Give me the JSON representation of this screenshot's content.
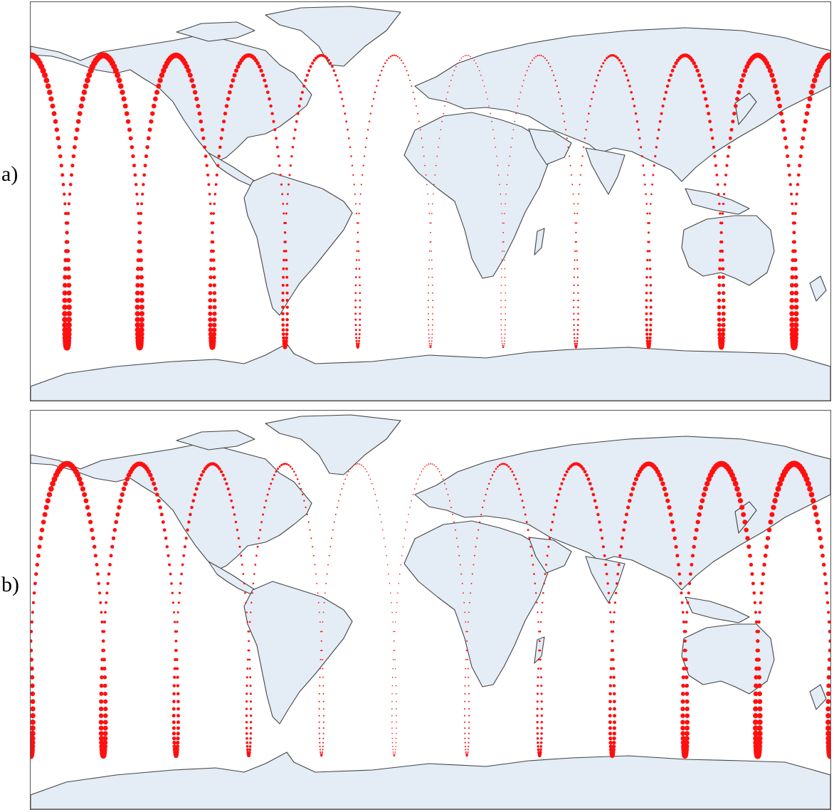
{
  "figure": {
    "panels": [
      {
        "id": "a",
        "label": "a)",
        "phase": 0.0
      },
      {
        "id": "b",
        "label": "b)",
        "phase": 0.5
      }
    ]
  },
  "map": {
    "projection": "equirectangular",
    "land_color": "#e4ecf5",
    "coast_color": "#444444",
    "ground_track_color": "#ff1010",
    "lat_range_of_tracks": [
      -66,
      66
    ]
  }
}
